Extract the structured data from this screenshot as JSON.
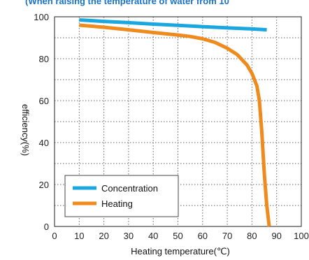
{
  "chart_data": {
    "type": "line",
    "subtitle": "(When raising the temperature of water from 10",
    "xlabel": "Heating temperature(℃)",
    "ylabel": "efficiency(%)",
    "xlim": [
      0,
      100
    ],
    "ylim": [
      0,
      100
    ],
    "x_ticks": [
      "0",
      "10",
      "20",
      "30",
      "40",
      "50",
      "60",
      "70",
      "80",
      "90",
      "100"
    ],
    "y_ticks": [
      "0",
      "20",
      "40",
      "60",
      "80",
      "100"
    ],
    "grid": true,
    "legend_position": "bottom-left",
    "series": [
      {
        "name": "Concentration",
        "color": "#1aa7e0",
        "x": [
          10,
          20,
          30,
          40,
          50,
          60,
          70,
          80,
          86
        ],
        "y": [
          98.5,
          97.8,
          97.2,
          96.5,
          95.9,
          95.3,
          94.7,
          94.2,
          93.8
        ]
      },
      {
        "name": "Heating",
        "color": "#ef8a1c",
        "x": [
          10,
          20,
          30,
          40,
          50,
          55,
          60,
          65,
          70,
          74,
          78,
          80,
          82,
          83,
          84,
          85,
          86,
          87
        ],
        "y": [
          96,
          95,
          93.8,
          92.5,
          91.3,
          90.6,
          89.5,
          87.8,
          85,
          82,
          77,
          73,
          67,
          60,
          45,
          25,
          10,
          0
        ]
      }
    ]
  }
}
